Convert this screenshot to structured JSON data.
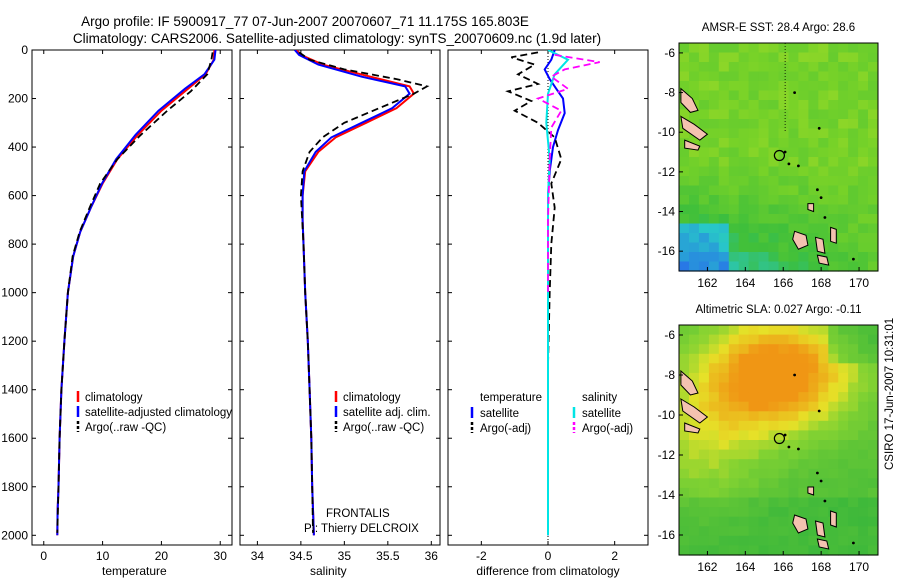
{
  "header": {
    "title_line1": "Argo profile: IF 5900917_77 07-Jun-2007 20070607_71 11.175S 165.803E",
    "title_line2": "Climatology: CARS2006. Satellite-adjusted climatology: synTS_20070609.nc (1.9d later)"
  },
  "colors": {
    "climatology": "#ff0000",
    "satellite": "#0000ff",
    "argo": "#000000",
    "satellite_salinity": "#00e5e5",
    "argo_salinity": "#ff00ff"
  },
  "chart_data": [
    {
      "id": "temperature",
      "type": "line",
      "xlabel": "temperature",
      "ylabel": "",
      "xlim": [
        -2,
        32
      ],
      "ylim": [
        2040,
        0
      ],
      "xticks": [
        0,
        10,
        20,
        30
      ],
      "yticks": [
        0,
        200,
        400,
        600,
        800,
        1000,
        1200,
        1400,
        1600,
        1800,
        2000
      ],
      "legend": {
        "position": "lower-right",
        "entries": [
          "climatology",
          "satellite-adjusted climatology",
          "Argo(..raw -QC)"
        ]
      },
      "series": [
        {
          "name": "climatology",
          "color": "#ff0000",
          "style": "solid",
          "x": [
            29.0,
            28.9,
            27.5,
            24.5,
            20.0,
            16.0,
            12.5,
            10.0,
            8.0,
            6.2,
            5.0,
            4.1,
            3.5,
            3.0,
            2.7,
            2.5,
            2.35,
            2.3
          ],
          "y": [
            0,
            40,
            100,
            160,
            250,
            350,
            450,
            550,
            650,
            750,
            850,
            1000,
            1200,
            1400,
            1600,
            1800,
            1900,
            2000
          ]
        },
        {
          "name": "satellite-adjusted climatology",
          "color": "#0000ff",
          "style": "solid",
          "x": [
            29.2,
            29.0,
            27.3,
            24.0,
            19.5,
            15.6,
            12.3,
            9.9,
            8.0,
            6.2,
            5.0,
            4.1,
            3.5,
            3.0,
            2.7,
            2.5,
            2.35,
            2.3
          ],
          "y": [
            0,
            40,
            100,
            160,
            250,
            350,
            450,
            550,
            650,
            750,
            850,
            1000,
            1200,
            1400,
            1600,
            1800,
            1900,
            2000
          ]
        },
        {
          "name": "Argo(..raw -QC)",
          "color": "#000000",
          "style": "dashed",
          "x": [
            28.7,
            28.5,
            27.8,
            25.0,
            21.0,
            16.5,
            12.5,
            9.6,
            7.8,
            6.1,
            4.9,
            4.1,
            3.5,
            3.0,
            2.7,
            2.5,
            2.4,
            2.3
          ],
          "y": [
            10,
            40,
            100,
            170,
            250,
            350,
            450,
            550,
            650,
            750,
            850,
            1000,
            1200,
            1400,
            1600,
            1800,
            1900,
            1990
          ]
        }
      ]
    },
    {
      "id": "salinity",
      "type": "line",
      "xlabel": "salinity",
      "ylabel": "",
      "xlim": [
        33.8,
        36.1
      ],
      "ylim": [
        2040,
        0
      ],
      "xticks": [
        34,
        34.5,
        35,
        35.5,
        36
      ],
      "yticks": [
        0,
        200,
        400,
        600,
        800,
        1000,
        1200,
        1400,
        1600,
        1800,
        2000
      ],
      "legend": {
        "position": "lower-right",
        "entries": [
          "climatology",
          "satellite adj. clim.",
          "Argo(..raw -QC)"
        ]
      },
      "annotations": [
        "FRONTALIS",
        "PI: Thierry DELCROIX"
      ],
      "series": [
        {
          "name": "climatology",
          "color": "#ff0000",
          "style": "solid",
          "x": [
            34.45,
            34.5,
            34.75,
            35.3,
            35.75,
            35.8,
            35.6,
            35.25,
            34.9,
            34.7,
            34.55,
            34.52,
            34.52,
            34.53,
            34.55,
            34.58,
            34.6,
            34.62,
            34.63,
            34.65
          ],
          "y": [
            0,
            20,
            60,
            110,
            150,
            180,
            240,
            300,
            360,
            420,
            500,
            600,
            700,
            800,
            1000,
            1200,
            1400,
            1600,
            1800,
            2000
          ]
        },
        {
          "name": "satellite adj. clim.",
          "color": "#0000ff",
          "style": "solid",
          "x": [
            34.43,
            34.48,
            34.7,
            35.2,
            35.7,
            35.75,
            35.55,
            35.2,
            34.85,
            34.67,
            34.54,
            34.52,
            34.52,
            34.53,
            34.55,
            34.58,
            34.6,
            34.62,
            34.63,
            34.65
          ],
          "y": [
            0,
            20,
            60,
            110,
            150,
            180,
            240,
            300,
            360,
            420,
            500,
            600,
            700,
            800,
            1000,
            1200,
            1400,
            1600,
            1800,
            2000
          ]
        },
        {
          "name": "Argo(..raw -QC)",
          "color": "#000000",
          "style": "dashed",
          "x": [
            34.48,
            34.6,
            35.0,
            35.6,
            35.95,
            35.8,
            35.4,
            35.0,
            34.75,
            34.6,
            34.52,
            34.5,
            34.53,
            34.55,
            34.58,
            34.6,
            34.62,
            34.63,
            34.64
          ],
          "y": [
            10,
            40,
            80,
            120,
            150,
            180,
            240,
            300,
            360,
            420,
            500,
            600,
            800,
            1000,
            1200,
            1400,
            1600,
            1800,
            1990
          ]
        }
      ]
    },
    {
      "id": "difference",
      "type": "line",
      "xlabel": "difference from climatology",
      "ylabel": "",
      "xlim": [
        -3,
        3
      ],
      "ylim": [
        2040,
        0
      ],
      "xticks": [
        -2,
        0,
        2
      ],
      "yticks": [
        0,
        200,
        400,
        600,
        800,
        1000,
        1200,
        1400,
        1600,
        1800,
        2000
      ],
      "legend": {
        "position": "lower",
        "left_title": "temperature",
        "right_title": "salinity",
        "left_entries": [
          "satellite",
          "Argo(-adj)"
        ],
        "right_entries": [
          "satellite",
          "Argo(-adj)"
        ]
      },
      "series": [
        {
          "name": "satellite",
          "group": "temperature",
          "color": "#0000ff",
          "style": "solid",
          "x": [
            0.2,
            0.1,
            -0.1,
            0.05,
            0.25,
            0.45,
            0.5,
            0.3,
            0.15,
            0.05,
            0.0,
            0.0,
            0.0,
            0.0,
            0.0,
            0.0,
            0.0
          ],
          "y": [
            0,
            40,
            80,
            120,
            160,
            200,
            260,
            330,
            400,
            500,
            600,
            800,
            1000,
            1200,
            1500,
            1800,
            2000
          ]
        },
        {
          "name": "Argo(-adj)",
          "group": "temperature",
          "color": "#000000",
          "style": "dashed",
          "x": [
            -0.3,
            -1.1,
            -0.4,
            -0.9,
            -0.3,
            -1.2,
            -0.5,
            -1.0,
            -0.3,
            0.2,
            0.4,
            0.1,
            0.2,
            0.1,
            0.05,
            0.0,
            0.0
          ],
          "y": [
            10,
            30,
            60,
            100,
            140,
            170,
            210,
            250,
            300,
            360,
            450,
            550,
            650,
            800,
            1000,
            1300,
            1500
          ]
        },
        {
          "name": "satellite",
          "group": "salinity",
          "color": "#00e5e5",
          "style": "solid",
          "x": [
            0.0,
            0.6,
            0.2,
            0.0,
            -0.05,
            0.05,
            0.0,
            0.0,
            0.0,
            0.0,
            0.0
          ],
          "y": [
            0,
            40,
            100,
            180,
            300,
            450,
            600,
            900,
            1300,
            1700,
            2000
          ]
        },
        {
          "name": "Argo(-adj)",
          "group": "salinity",
          "color": "#ff00ff",
          "style": "dashed",
          "x": [
            0.2,
            1.55,
            0.5,
            0.1,
            0.6,
            -0.3,
            0.4,
            0.1,
            0.05,
            0.0,
            0.0
          ],
          "y": [
            20,
            50,
            80,
            110,
            160,
            200,
            250,
            320,
            450,
            700,
            1000
          ]
        }
      ]
    },
    {
      "id": "amsr_map",
      "type": "heatmap",
      "title": "AMSR-E SST: 28.4 Argo: 28.6",
      "xlim": [
        160.5,
        171
      ],
      "ylim": [
        -17,
        -5.5
      ],
      "xticks": [
        162,
        164,
        166,
        168,
        170
      ],
      "yticks": [
        -6,
        -8,
        -10,
        -12,
        -14,
        -16
      ],
      "marker": {
        "lon": 165.8,
        "lat": -11.175
      }
    },
    {
      "id": "altimetric_map",
      "type": "heatmap",
      "title": "Altimetric SLA: 0.027 Argo: -0.11",
      "xlim": [
        160.5,
        171
      ],
      "ylim": [
        -17,
        -5.5
      ],
      "xticks": [
        162,
        164,
        166,
        168,
        170
      ],
      "yticks": [
        -6,
        -8,
        -10,
        -12,
        -14,
        -16
      ],
      "marker": {
        "lon": 165.8,
        "lat": -11.175
      }
    }
  ],
  "footer": {
    "stamp": "CSIRO 17-Jun-2007 10:31:01"
  }
}
